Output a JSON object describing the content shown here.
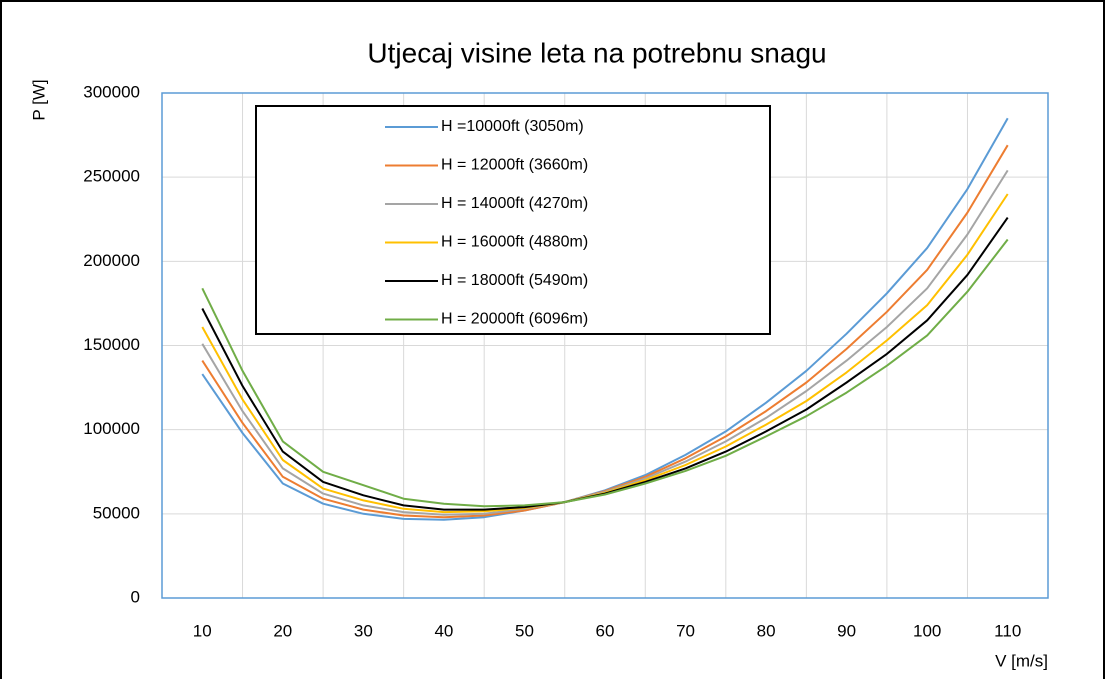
{
  "chart_data": {
    "type": "line",
    "title": "Utjecaj visine leta na potrebnu snagu",
    "x_label": "V [m/s]",
    "y_label": "P [W]",
    "x": [
      10,
      15,
      20,
      25,
      30,
      35,
      40,
      45,
      50,
      55,
      60,
      65,
      70,
      75,
      80,
      85,
      90,
      95,
      100,
      105,
      110
    ],
    "series": [
      {
        "name": "H =10000ft (3050m)",
        "color": "#5b9bd5",
        "values": [
          133000,
          98000,
          68000,
          56000,
          50000,
          47000,
          46500,
          48000,
          52000,
          57000,
          64000,
          73000,
          85000,
          99000,
          116000,
          135000,
          157000,
          181000,
          208000,
          243000,
          285000
        ]
      },
      {
        "name": "H = 12000ft (3660m)",
        "color": "#ed7d31",
        "values": [
          141000,
          104000,
          72000,
          59000,
          52500,
          49000,
          48000,
          49000,
          52000,
          57000,
          63500,
          72000,
          83000,
          96000,
          111000,
          128000,
          148000,
          170000,
          195000,
          229000,
          269000
        ]
      },
      {
        "name": "H = 14000ft (4270m)",
        "color": "#a5a5a5",
        "values": [
          151000,
          111000,
          77000,
          62000,
          55000,
          51000,
          49500,
          50000,
          53000,
          57000,
          63000,
          71000,
          81000,
          93000,
          107000,
          123000,
          141000,
          161000,
          184000,
          216000,
          254000
        ]
      },
      {
        "name": "H = 16000ft (4880m)",
        "color": "#ffc000",
        "values": [
          161000,
          118000,
          82000,
          65000,
          58000,
          53000,
          51000,
          51500,
          53500,
          57000,
          62500,
          70000,
          79000,
          90000,
          103000,
          117000,
          134000,
          153000,
          174000,
          204000,
          240000
        ]
      },
      {
        "name": "H = 18000ft (5490m)",
        "color": "#000000",
        "values": [
          172000,
          126000,
          87000,
          69000,
          61000,
          55000,
          52500,
          52500,
          54000,
          57000,
          62000,
          69000,
          77000,
          87000,
          99000,
          112000,
          128000,
          145000,
          165000,
          192000,
          226000
        ]
      },
      {
        "name": "H = 20000ft (6096m)",
        "color": "#70ad47",
        "values": [
          184000,
          135000,
          93000,
          75000,
          67000,
          59000,
          56000,
          54500,
          55000,
          57000,
          61500,
          68000,
          75500,
          84500,
          96000,
          108000,
          122000,
          138000,
          156000,
          182000,
          213000
        ]
      }
    ],
    "xlim": [
      5,
      115
    ],
    "xticks": [
      10,
      20,
      30,
      40,
      50,
      60,
      70,
      80,
      90,
      100,
      110
    ],
    "ylim": [
      0,
      300000
    ],
    "yticks": [
      0,
      50000,
      100000,
      150000,
      200000,
      250000,
      300000
    ],
    "grid": true
  }
}
